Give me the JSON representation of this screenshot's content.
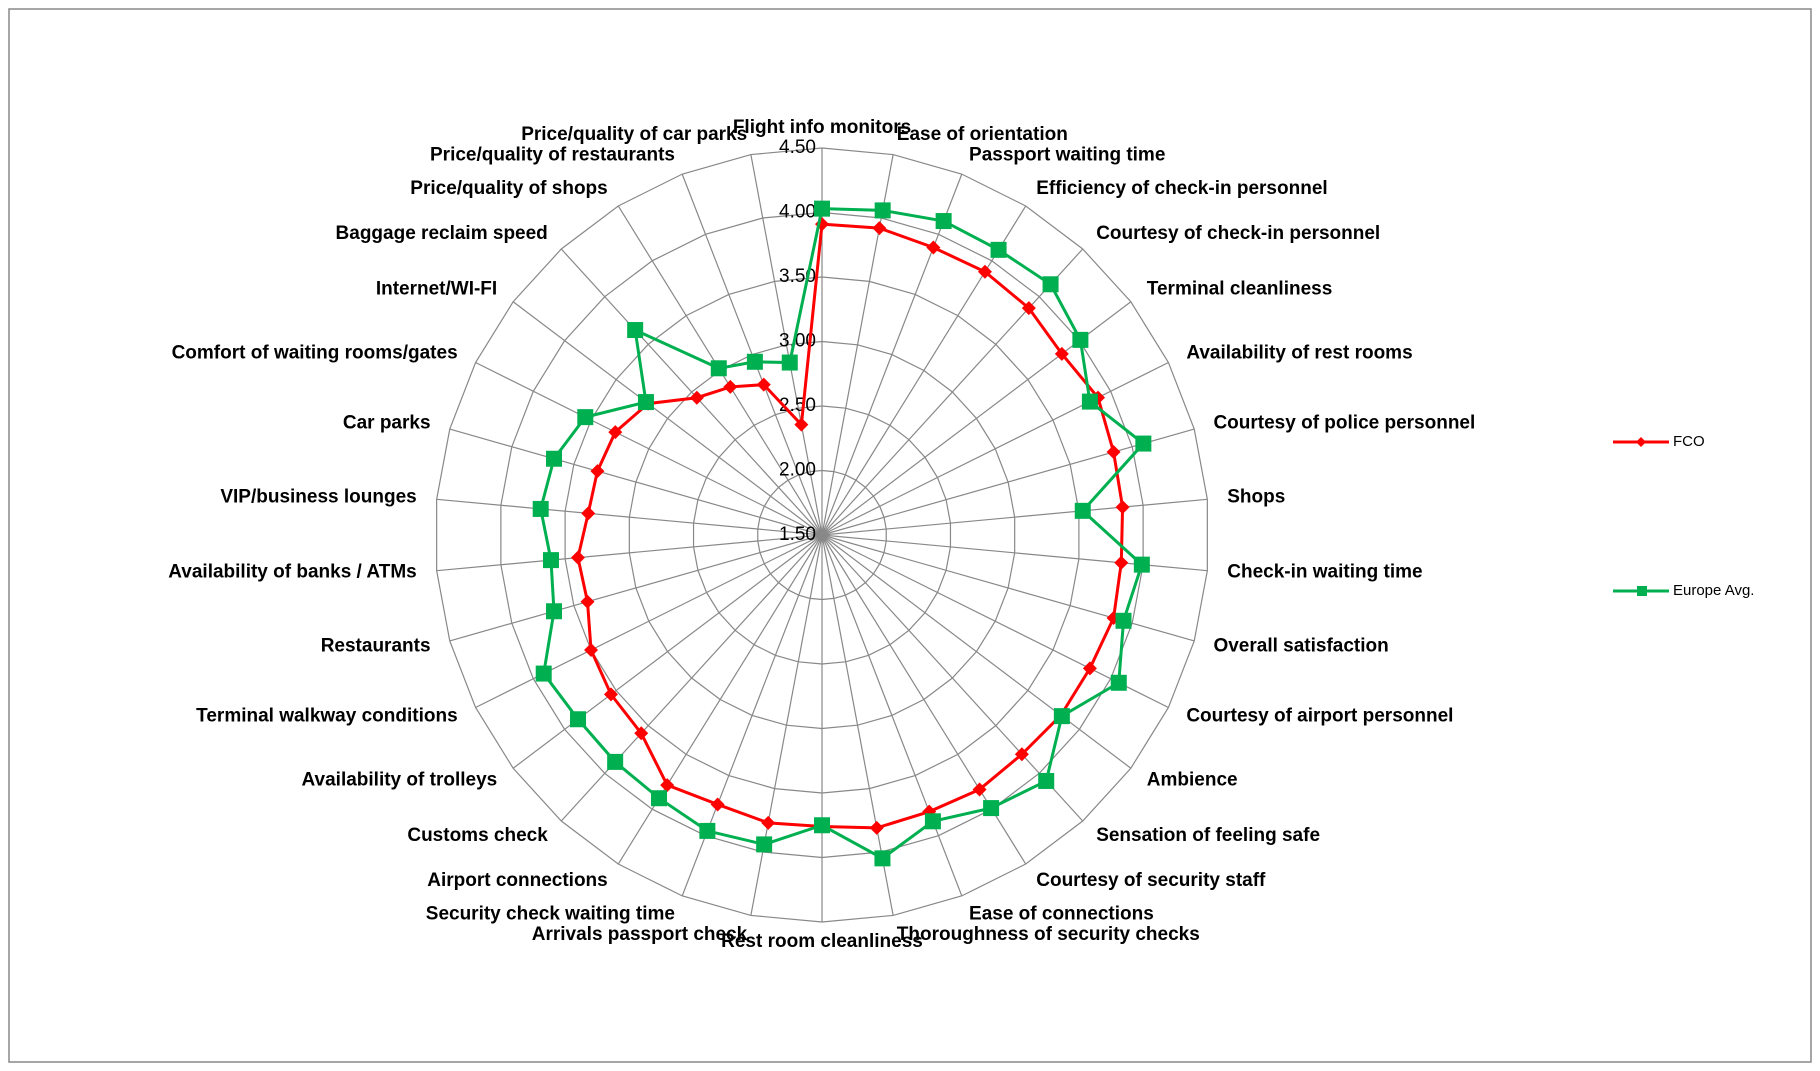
{
  "chart_data": {
    "type": "radar",
    "categories": [
      "Flight info monitors",
      "Ease of orientation",
      "Passport waiting time",
      "Efficiency of check-in personnel",
      "Courtesy of check-in personnel",
      "Terminal cleanliness",
      "Availability of rest rooms",
      "Courtesy of police personnel",
      "Shops",
      "Check-in waiting time",
      "Overall satisfaction",
      "Courtesy of airport personnel",
      "Ambience",
      "Sensation of feeling safe",
      "Courtesy of security staff",
      "Ease of connections",
      "Thoroughness of security checks",
      "Rest room cleanliness",
      "Arrivals passport check",
      "Security check waiting time",
      "Airport connections",
      "Customs check",
      "Availability of trolleys",
      "Terminal walkway conditions",
      "Restaurants",
      "Availability of banks / ATMs",
      "VIP/business lounges",
      "Car parks",
      "Comfort of waiting rooms/gates",
      "Internet/WI-FI",
      "Baggage reclaim speed",
      "Price/quality of shops",
      "Price/quality of restaurants",
      "Price/quality of car parks"
    ],
    "series": [
      {
        "name": "FCO",
        "color": "#ff0000",
        "marker": "diamond",
        "values": [
          3.91,
          3.92,
          3.89,
          3.9,
          3.88,
          3.83,
          3.89,
          3.85,
          3.84,
          3.83,
          3.85,
          3.82,
          3.82,
          3.8,
          3.82,
          3.8,
          3.81,
          3.76,
          3.77,
          3.74,
          3.78,
          3.58,
          3.55,
          3.5,
          3.39,
          3.4,
          3.32,
          3.31,
          3.29,
          3.19,
          2.94,
          2.85,
          2.75,
          2.37
        ]
      },
      {
        "name": "Europe Avg.",
        "color": "#00b050",
        "marker": "square",
        "values": [
          4.03,
          4.06,
          4.11,
          4.1,
          4.13,
          4.01,
          3.82,
          4.09,
          3.53,
          3.99,
          3.93,
          4.07,
          3.83,
          4.08,
          3.99,
          3.88,
          4.05,
          3.75,
          3.94,
          3.96,
          3.9,
          3.88,
          3.87,
          3.91,
          3.66,
          3.61,
          3.69,
          3.66,
          3.55,
          3.21,
          3.65,
          3.02,
          2.94,
          2.86
        ]
      }
    ],
    "ylim": [
      1.5,
      4.5
    ],
    "yticks": [
      {
        "value": 1.5,
        "label": "1.50"
      },
      {
        "value": 2,
        "label": "2.00"
      },
      {
        "value": 2.5,
        "label": "2.50"
      },
      {
        "value": 3,
        "label": "3.00"
      },
      {
        "value": 3.5,
        "label": "3.50"
      },
      {
        "value": 4,
        "label": "4.00"
      },
      {
        "value": 4.5,
        "label": "4.50"
      }
    ],
    "grid": true,
    "legend": "right"
  }
}
